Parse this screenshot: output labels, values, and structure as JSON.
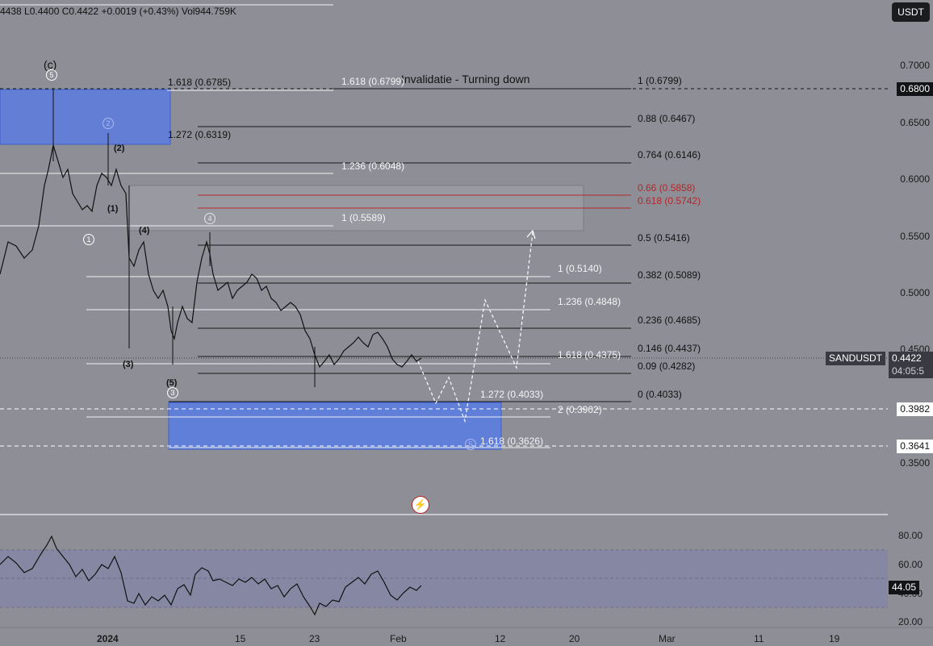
{
  "header": {
    "ohlc_text": "4438  L0.4400  C0.4422  +0.0019 (+0.43%)  Vol944.759K",
    "currency_button": "USDT"
  },
  "annotations": {
    "invalidation": "Invalidatie - Turning down"
  },
  "price_axis": {
    "ticks": [
      "0.7000",
      "0.6500",
      "0.6000",
      "0.5500",
      "0.5000",
      "0.4500",
      "0.3500"
    ],
    "tags": {
      "top_line": "0.6800",
      "symbol": "SANDUSDT",
      "last_price": "0.4422",
      "countdown": "04:05:5",
      "support_1": "0.3982",
      "support_2": "0.3641"
    }
  },
  "rsi_axis": {
    "ticks": [
      "80.00",
      "60.00",
      "40.00",
      "20.00"
    ],
    "value": "44.05"
  },
  "time_axis": {
    "ticks": [
      "2024",
      "15",
      "23",
      "Feb",
      "12",
      "20",
      "Mar",
      "11",
      "19"
    ]
  },
  "fib_left": [
    {
      "label": "1.618 (0.6785)",
      "color": "dark"
    },
    {
      "label": "1.272 (0.6319)",
      "color": "dark"
    }
  ],
  "fib_mid": [
    {
      "label": "1.618 (0.6799)",
      "color": "white"
    },
    {
      "label": "1.236 (0.6048)",
      "color": "white"
    },
    {
      "label": "1 (0.5589)",
      "color": "white"
    },
    {
      "label": "1 (0.5140)",
      "color": "white"
    },
    {
      "label": "1.236 (0.4848)",
      "color": "white"
    },
    {
      "label": "1.618 (0.4375)",
      "color": "white"
    },
    {
      "label": "1.272 (0.4033)",
      "color": "white"
    },
    {
      "label": "2 (0.3902)",
      "color": "white"
    },
    {
      "label": "1.618 (0.3626)",
      "color": "white"
    }
  ],
  "fib_right": [
    {
      "label": "1 (0.6799)",
      "color": "dark"
    },
    {
      "label": "0.88 (0.6467)",
      "color": "dark"
    },
    {
      "label": "0.764 (0.6146)",
      "color": "dark"
    },
    {
      "label": "0.66 (0.5858)",
      "color": "red"
    },
    {
      "label": "0.618 (0.5742)",
      "color": "red"
    },
    {
      "label": "0.5 (0.5416)",
      "color": "dark"
    },
    {
      "label": "0.382 (0.5089)",
      "color": "dark"
    },
    {
      "label": "0.236 (0.4685)",
      "color": "dark"
    },
    {
      "label": "0.146 (0.4437)",
      "color": "dark"
    },
    {
      "label": "0.09 (0.4282)",
      "color": "dark"
    },
    {
      "label": "0 (0.4033)",
      "color": "dark"
    }
  ],
  "wave_labels": {
    "c": "(c)",
    "w2": "(2)",
    "w1": "(1)",
    "w4": "(4)",
    "w3": "(3)",
    "w5": "(5)",
    "c5": "5",
    "c2": "2",
    "c1": "1",
    "c3": "3",
    "c4": "4",
    "c5b": "5"
  },
  "colors": {
    "background": "#8e8f96",
    "zone_blue": "#5b7de0",
    "zone_grey": "#a0a1a8",
    "fib_red": "#b3262b",
    "rsi_band": "#8584a6"
  },
  "icons": {
    "lightning": "lightning-icon"
  }
}
